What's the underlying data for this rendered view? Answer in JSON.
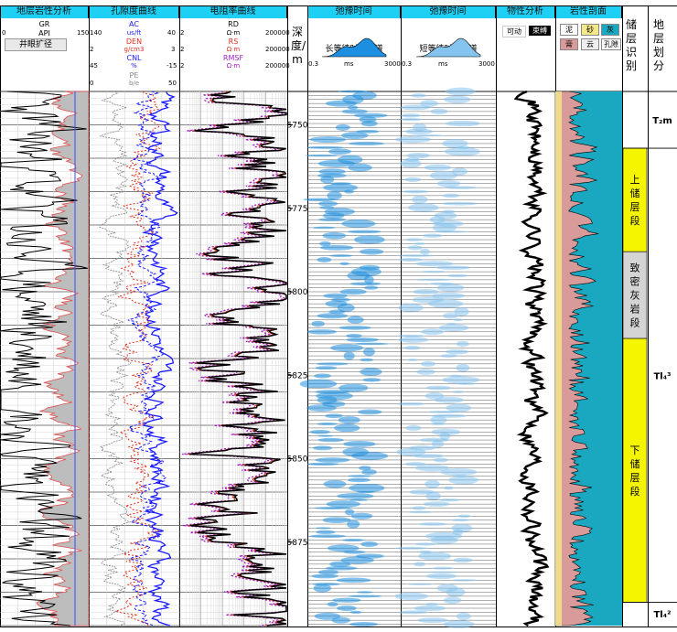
{
  "tracks": {
    "lithology": {
      "title": "地层岩性分析",
      "curve": "GR",
      "unit": "API",
      "min": "0",
      "max": "150",
      "button": "井眼扩径"
    },
    "porosity": {
      "title": "孔隙度曲线",
      "curves": [
        {
          "name": "AC",
          "unit": "us/ft",
          "min": "140",
          "max": "40",
          "color": "#1a1aff"
        },
        {
          "name": "DEN",
          "unit": "g/cm3",
          "min": "2",
          "max": "3",
          "color": "#e03020"
        },
        {
          "name": "CNL",
          "unit": "%",
          "min": "45",
          "max": "-15",
          "color": "#1a1aff"
        },
        {
          "name": "PE",
          "unit": "b/e",
          "min": "0",
          "max": "50",
          "color": "#888888"
        }
      ]
    },
    "resistivity": {
      "title": "电阻率曲线",
      "curves": [
        {
          "name": "RD",
          "unit": "Ω·m",
          "min": "2",
          "max": "200000",
          "color": "#000000"
        },
        {
          "name": "RS",
          "unit": "Ω·m",
          "min": "2",
          "max": "200000",
          "color": "#e03020"
        },
        {
          "name": "RMSF",
          "unit": "Ω·m",
          "min": "2",
          "max": "200000",
          "color": "#a020c0"
        }
      ]
    },
    "depth": {
      "label": "深度/m"
    },
    "relax_long": {
      "title": "弛豫时间",
      "spectrum": "长等待时间T₂谱",
      "min": "0.3",
      "unit": "ms",
      "max": "3000"
    },
    "relax_short": {
      "title": "弛豫时间",
      "spectrum": "短等待时间T₂谱",
      "min": "0.3",
      "unit": "ms",
      "max": "3000"
    },
    "physical": {
      "title": "物性分析",
      "legend": [
        "可动",
        "束缚"
      ]
    },
    "litho_profile": {
      "title": "岩性剖面",
      "legend": [
        "泥",
        "砂",
        "灰",
        "膏",
        "云",
        "孔隙"
      ]
    },
    "reservoir": {
      "title": "储层识别"
    },
    "strata": {
      "title": "地层划分"
    }
  },
  "chart_data": {
    "type": "well-log",
    "depth_range": [
      5740,
      5900
    ],
    "depth_ticks": [
      5750,
      5775,
      5800,
      5825,
      5850,
      5875
    ],
    "reservoir_zones": [
      {
        "label": "上储层段",
        "top": 5757,
        "bottom": 5788,
        "color": "#f5f500"
      },
      {
        "label": "致密灰岩段",
        "top": 5788,
        "bottom": 5814,
        "color": "#d4d4d4"
      },
      {
        "label": "下储层段",
        "top": 5814,
        "bottom": 5893,
        "color": "#f5f500"
      }
    ],
    "strata_zones": [
      {
        "label": "T₂m",
        "top": 5740,
        "bottom": 5757
      },
      {
        "label": "Tl₄³",
        "top": 5757,
        "bottom": 5893
      },
      {
        "label": "Tl₄²",
        "top": 5893,
        "bottom": 5900
      }
    ]
  }
}
